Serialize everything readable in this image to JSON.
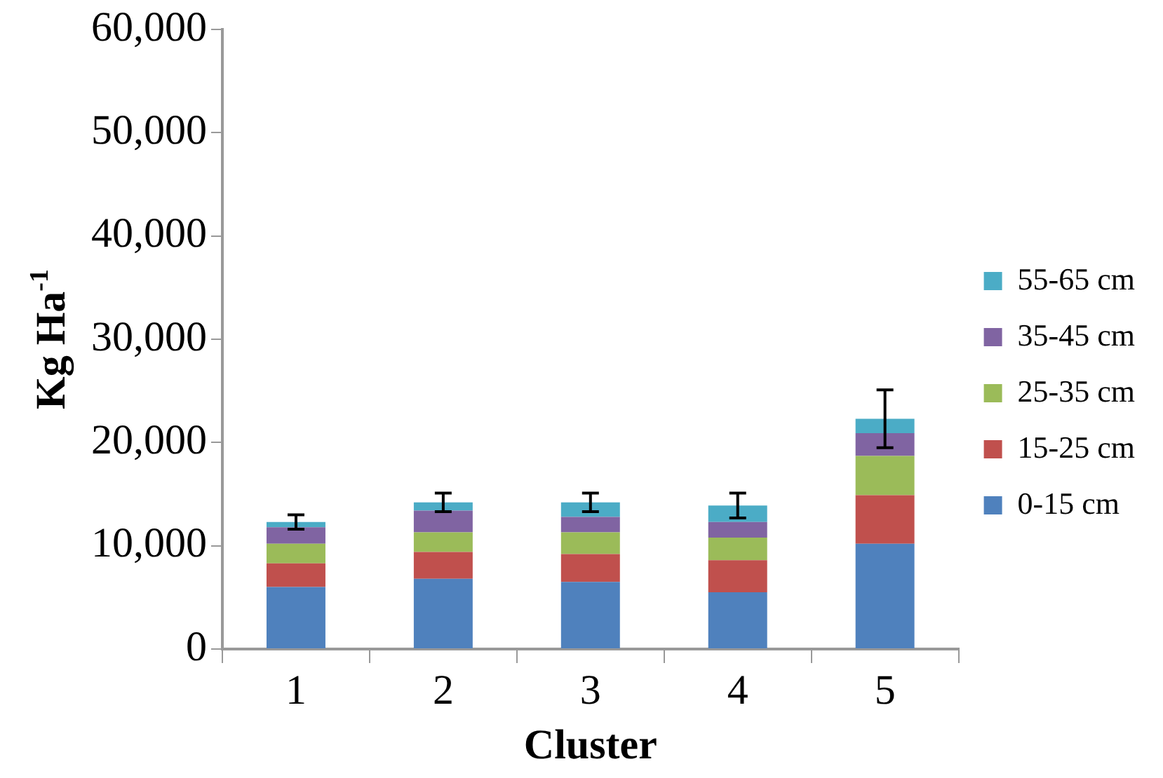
{
  "chart_data": {
    "type": "bar",
    "stacked": true,
    "xlabel": "Cluster",
    "ylabel": "Kg Ha$^{-1}$",
    "categories": [
      "1",
      "2",
      "3",
      "4",
      "5"
    ],
    "series": [
      {
        "name": "0-15 cm",
        "color": "#4f81bd",
        "values": [
          6000,
          6800,
          6500,
          5500,
          10200
        ]
      },
      {
        "name": "15-25 cm",
        "color": "#c0504d",
        "values": [
          2300,
          2600,
          2700,
          3100,
          4700
        ]
      },
      {
        "name": "25-35 cm",
        "color": "#9bbb59",
        "values": [
          1900,
          1900,
          2100,
          2200,
          3800
        ]
      },
      {
        "name": "35-45 cm",
        "color": "#8064a2",
        "values": [
          1600,
          2100,
          1500,
          1500,
          2200
        ]
      },
      {
        "name": "55-65 cm",
        "color": "#4bacc6",
        "values": [
          500,
          800,
          1400,
          1600,
          1400
        ],
        "errors": [
          700,
          900,
          900,
          1200,
          2800
        ]
      }
    ],
    "ylim": [
      0,
      60000
    ],
    "yticks": [
      0,
      {
        "value": 10000,
        "label": "10,000"
      },
      {
        "value": 20000,
        "label": "20,000"
      },
      {
        "value": 30000,
        "label": "30,000"
      },
      {
        "value": 40000,
        "label": "40,000"
      },
      {
        "value": 50000,
        "label": "50,000"
      },
      {
        "value": 60000,
        "label": "60,000"
      }
    ],
    "grid": false,
    "legend": "right"
  }
}
